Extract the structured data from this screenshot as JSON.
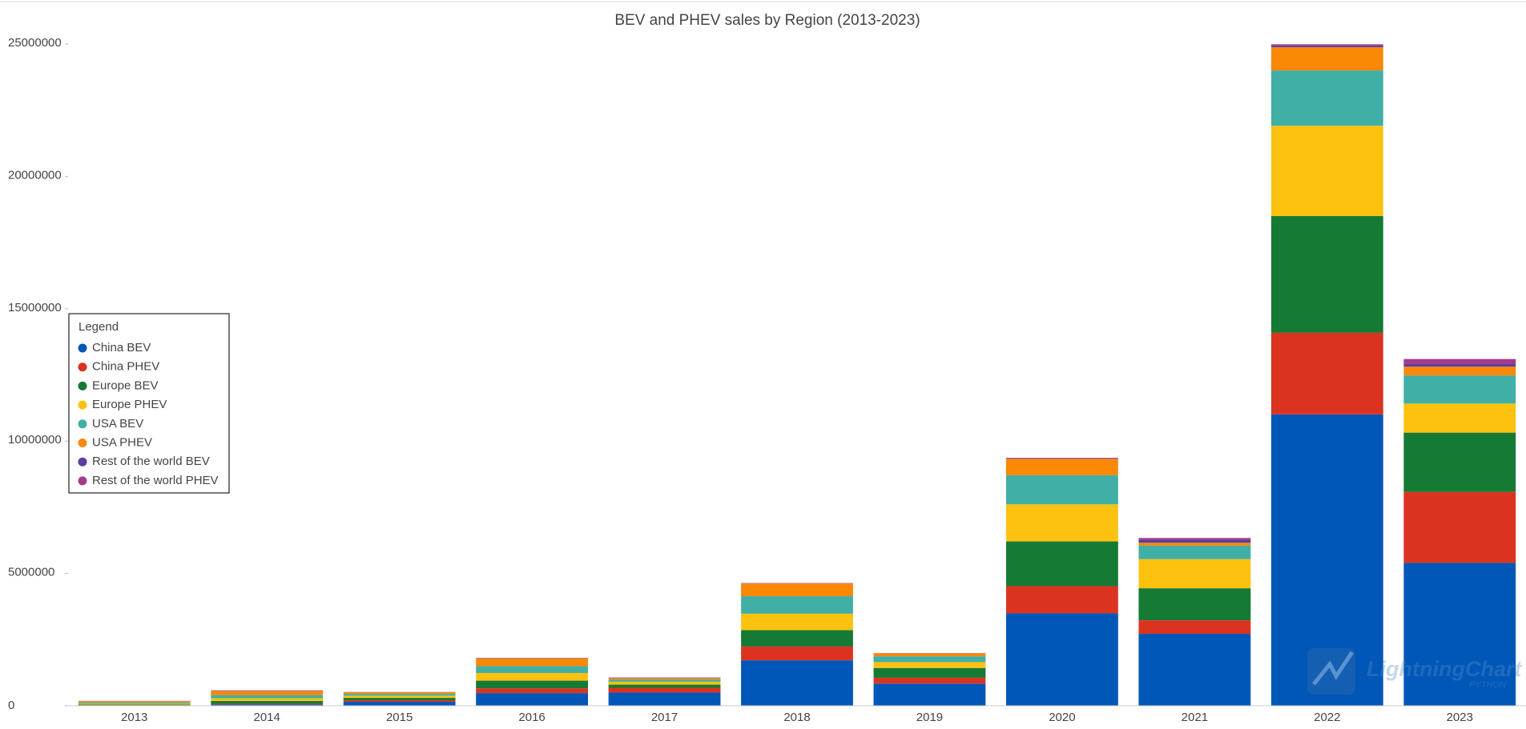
{
  "chart_data": {
    "type": "stacked_bar",
    "title": "BEV and PHEV sales by Region (2013-2023)",
    "categories": [
      "2013",
      "2014",
      "2015",
      "2016",
      "2017",
      "2018",
      "2019",
      "2020",
      "2021",
      "2022",
      "2023"
    ],
    "series": [
      {
        "name": "China BEV",
        "color": "#0057b8",
        "values": [
          15000,
          50000,
          150000,
          480000,
          500000,
          1720000,
          840000,
          3490000,
          2720000,
          11010000,
          5400000
        ]
      },
      {
        "name": "China PHEV",
        "color": "#dc3321",
        "values": [
          10000,
          25000,
          60000,
          180000,
          180000,
          520000,
          220000,
          1030000,
          510000,
          3080000,
          2680000
        ]
      },
      {
        "name": "Europe BEV",
        "color": "#157a34",
        "values": [
          25000,
          110000,
          90000,
          290000,
          120000,
          620000,
          370000,
          1690000,
          1210000,
          4410000,
          2240000
        ]
      },
      {
        "name": "Europe PHEV",
        "color": "#fdc20f",
        "values": [
          30000,
          100000,
          80000,
          290000,
          110000,
          620000,
          220000,
          1400000,
          1100000,
          3410000,
          1100000
        ]
      },
      {
        "name": "USA BEV",
        "color": "#40afa6",
        "values": [
          45000,
          120000,
          70000,
          260000,
          80000,
          660000,
          220000,
          1100000,
          510000,
          2090000,
          1060000
        ]
      },
      {
        "name": "USA PHEV",
        "color": "#fa8805",
        "values": [
          50000,
          160000,
          60000,
          290000,
          60000,
          480000,
          110000,
          620000,
          110000,
          880000,
          330000
        ]
      },
      {
        "name": "Rest of the world BEV",
        "color": "#5b3ea4",
        "values": [
          5000,
          10000,
          5000,
          10000,
          10000,
          10000,
          5000,
          20000,
          110000,
          70000,
          110000
        ]
      },
      {
        "name": "Rest of the world PHEV",
        "color": "#a53a8b",
        "values": [
          5000,
          10000,
          5000,
          10000,
          10000,
          10000,
          5000,
          20000,
          70000,
          40000,
          180000
        ]
      }
    ],
    "ylim": [
      0,
      25000000
    ],
    "yticks": [
      0,
      5000000,
      10000000,
      15000000,
      20000000,
      25000000
    ],
    "grid": false,
    "legend_title": "Legend",
    "legend_position": "left",
    "watermark": "LightningChart",
    "watermark_sub": "PYTHON"
  }
}
